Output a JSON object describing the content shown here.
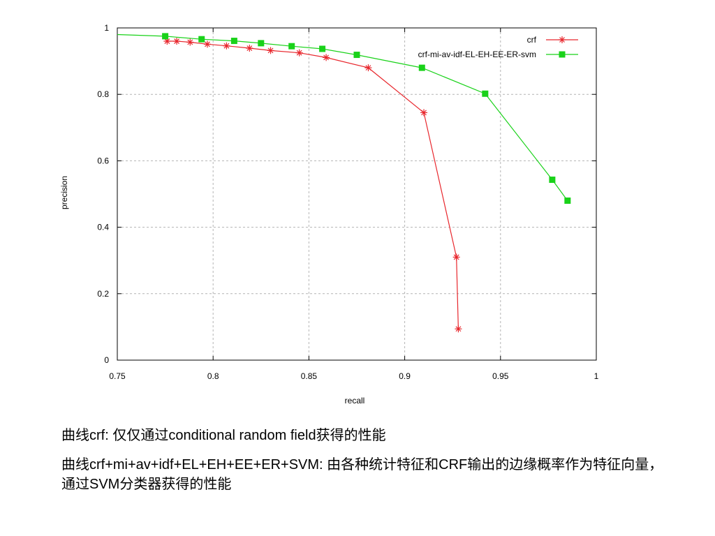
{
  "chart_data": {
    "type": "line",
    "xlabel": "recall",
    "ylabel": "precision",
    "xlim": [
      0.75,
      1
    ],
    "ylim": [
      0,
      1
    ],
    "xticks": [
      "0.75",
      "0.8",
      "0.85",
      "0.9",
      "0.95",
      "1"
    ],
    "yticks": [
      "0",
      "0.2",
      "0.4",
      "0.6",
      "0.8",
      "1"
    ],
    "grid": true,
    "legend_position": "top-right",
    "series": [
      {
        "name": "crf",
        "color": "#e8262c",
        "marker": "asterisk",
        "x": [
          0.776,
          0.781,
          0.788,
          0.797,
          0.807,
          0.819,
          0.83,
          0.845,
          0.859,
          0.881,
          0.91,
          0.927,
          0.928
        ],
        "y": [
          0.96,
          0.96,
          0.957,
          0.951,
          0.946,
          0.939,
          0.932,
          0.925,
          0.911,
          0.88,
          0.745,
          0.31,
          0.094
        ]
      },
      {
        "name": "crf-mi-av-idf-EL-EH-EE-ER-svm",
        "color": "#19d219",
        "marker": "square",
        "x": [
          0.75,
          0.775,
          0.794,
          0.811,
          0.825,
          0.841,
          0.857,
          0.875,
          0.909,
          0.942,
          0.977,
          0.985
        ],
        "y": [
          0.98,
          0.975,
          0.966,
          0.961,
          0.954,
          0.945,
          0.937,
          0.919,
          0.88,
          0.802,
          0.543,
          0.48
        ]
      }
    ]
  },
  "captions": {
    "line1": "曲线crf: 仅仅通过conditional random field获得的性能",
    "line2": "曲线crf+mi+av+idf+EL+EH+EE+ER+SVM: 由各种统计特征和CRF输出的边缘概率作为特征向量，通过SVM分类器获得的性能"
  }
}
